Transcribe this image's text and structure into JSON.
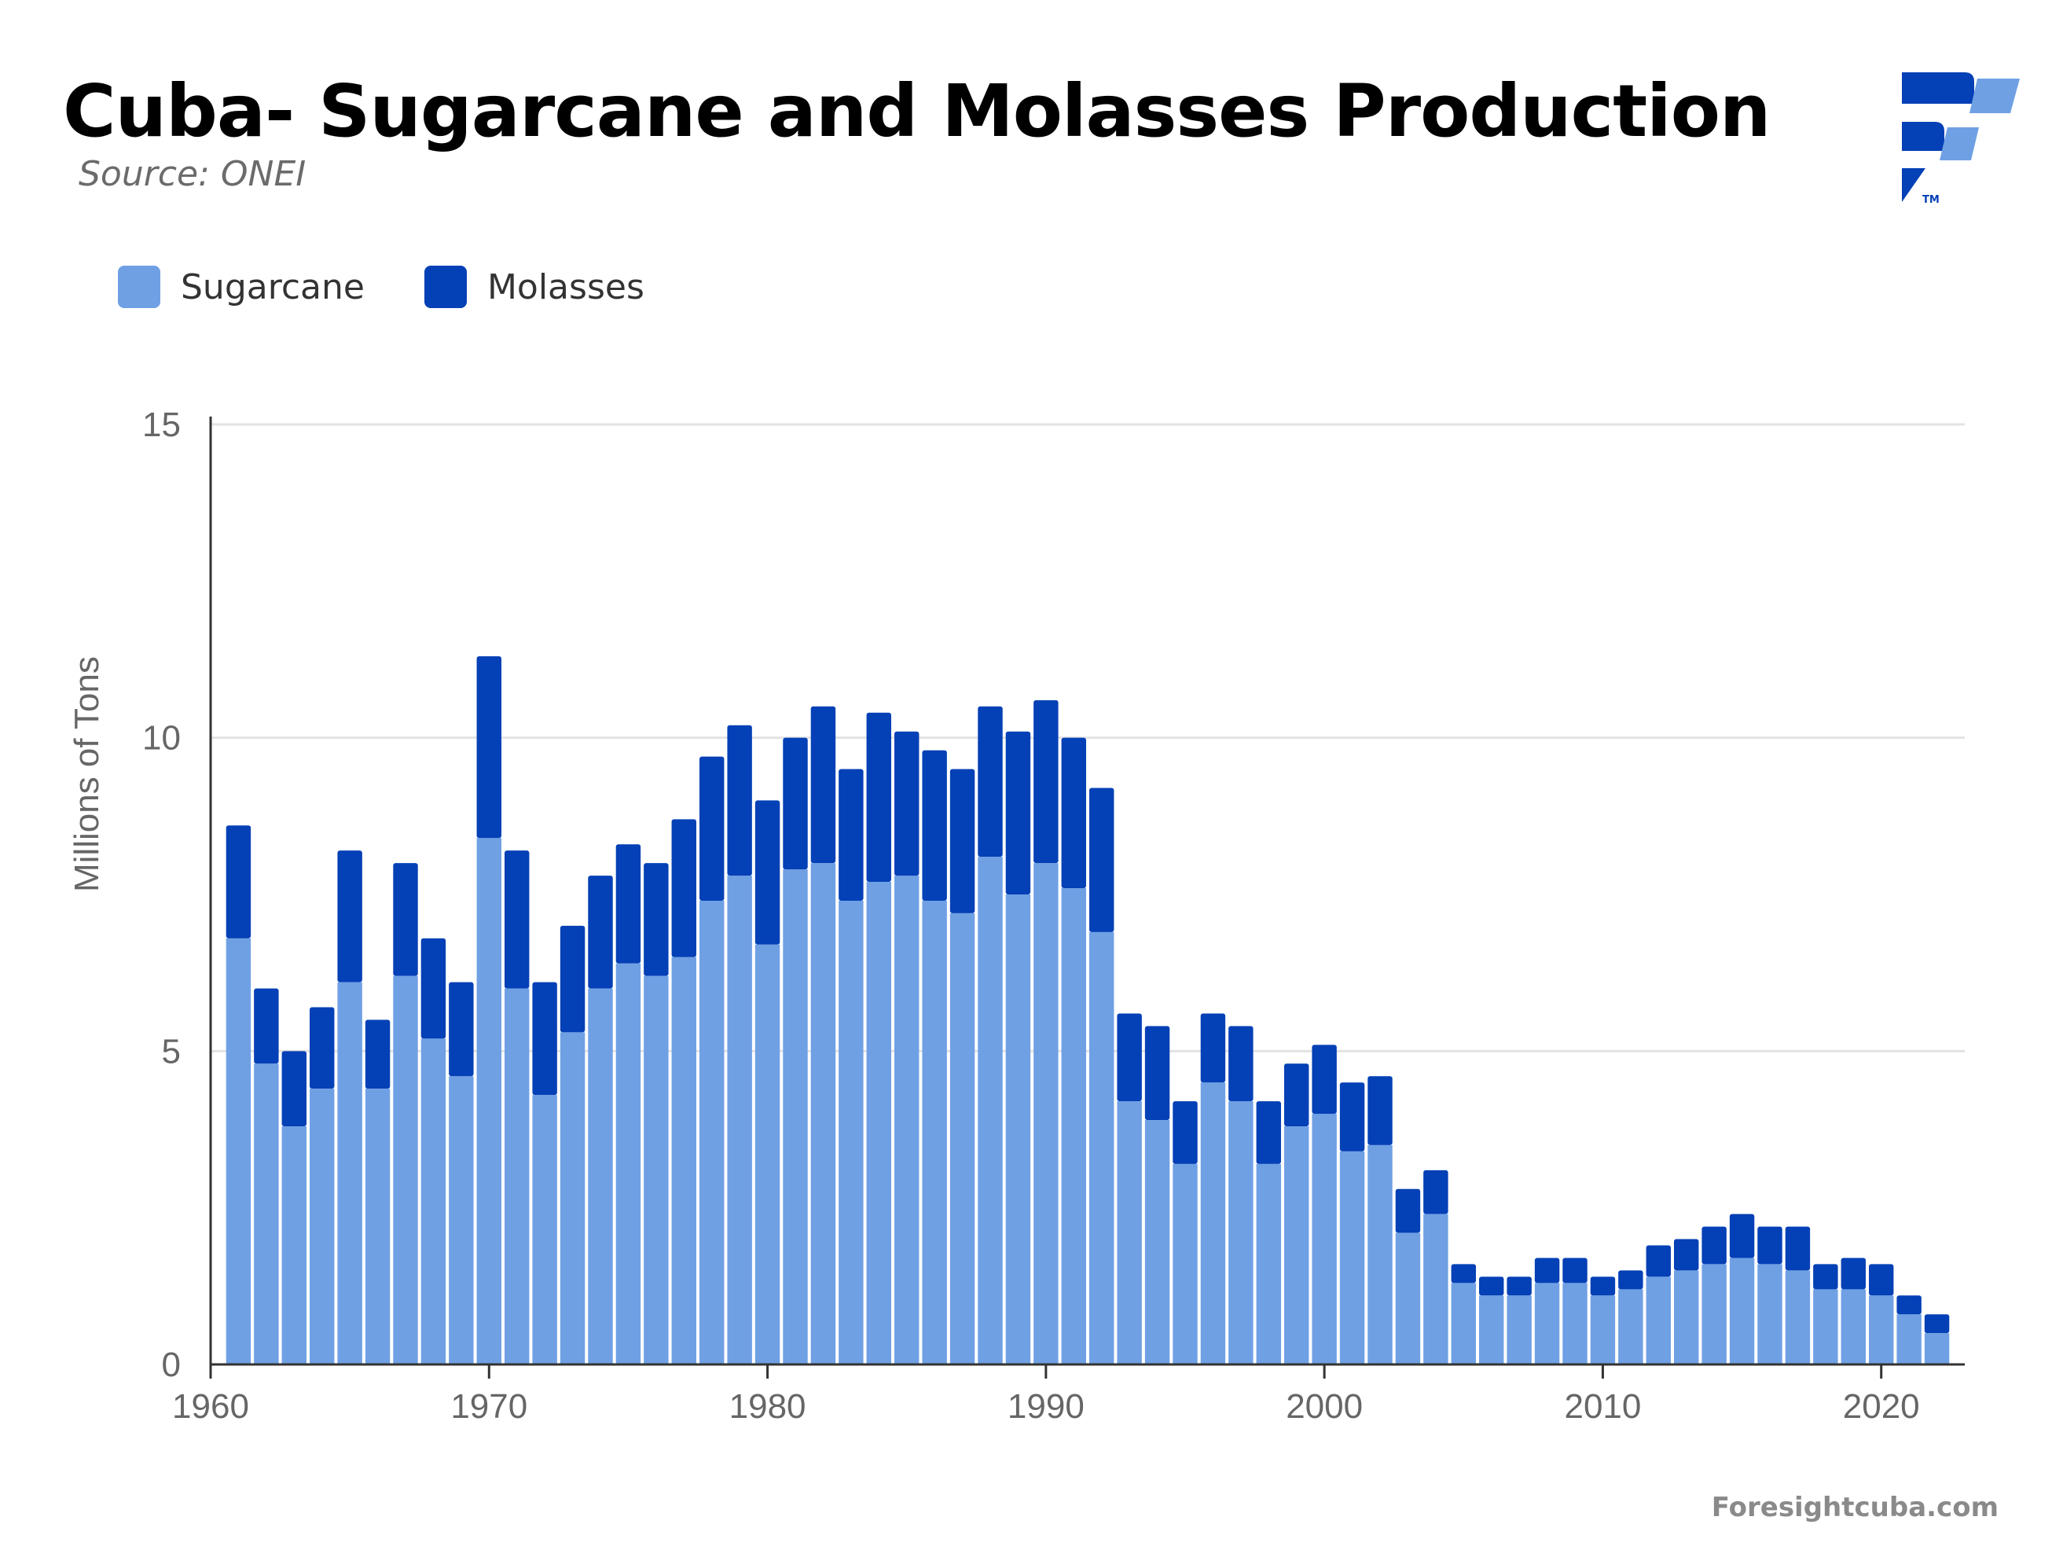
{
  "title": "Cuba- Sugarcane and Molasses Production",
  "subtitle": "Source: ONEI",
  "footer": "Foresightcuba.com",
  "logo": {
    "icon": "foresight-cuba-logo-icon",
    "tm": "TM"
  },
  "legend": [
    {
      "name": "Sugarcane",
      "color": "#6fa0e4"
    },
    {
      "name": "Molasses",
      "color": "#0440b6"
    }
  ],
  "colors": {
    "sugarcane": "#6fa0e4",
    "molasses": "#0440b6",
    "grid": "#e3e3e3",
    "axis": "#333333"
  },
  "chart_data": {
    "type": "bar",
    "stacked": true,
    "ylabel": "Millions of Tons",
    "xlabel": "",
    "ylim": [
      0,
      15
    ],
    "yticks": [
      0,
      5,
      10,
      15
    ],
    "xlim": [
      1960,
      2023
    ],
    "xticks": [
      1960,
      1970,
      1980,
      1990,
      2000,
      2010,
      2020
    ],
    "grid": true,
    "legend_position": "top-left",
    "x": [
      1961,
      1962,
      1963,
      1964,
      1965,
      1966,
      1967,
      1968,
      1969,
      1970,
      1971,
      1972,
      1973,
      1974,
      1975,
      1976,
      1977,
      1978,
      1979,
      1980,
      1981,
      1982,
      1983,
      1984,
      1985,
      1986,
      1987,
      1988,
      1989,
      1990,
      1991,
      1992,
      1993,
      1994,
      1995,
      1996,
      1997,
      1998,
      1999,
      2000,
      2001,
      2002,
      2003,
      2004,
      2005,
      2006,
      2007,
      2008,
      2009,
      2010,
      2011,
      2012,
      2013,
      2014,
      2015,
      2016,
      2017,
      2018,
      2019,
      2020,
      2021,
      2022
    ],
    "series": [
      {
        "name": "Sugarcane",
        "values": [
          6.8,
          4.8,
          3.8,
          4.4,
          6.1,
          4.4,
          6.2,
          5.2,
          4.6,
          8.4,
          6.0,
          4.3,
          5.3,
          6.0,
          6.4,
          6.2,
          6.5,
          7.4,
          7.8,
          6.7,
          7.9,
          8.0,
          7.4,
          7.7,
          7.8,
          7.4,
          7.2,
          8.1,
          7.5,
          8.0,
          7.6,
          6.9,
          4.2,
          3.9,
          3.2,
          4.5,
          4.2,
          3.2,
          3.8,
          4.0,
          3.4,
          3.5,
          2.1,
          2.4,
          1.3,
          1.1,
          1.1,
          1.3,
          1.3,
          1.1,
          1.2,
          1.4,
          1.5,
          1.6,
          1.7,
          1.6,
          1.5,
          1.2,
          1.2,
          1.1,
          0.8,
          0.5
        ]
      },
      {
        "name": "Molasses",
        "values": [
          1.8,
          1.2,
          1.2,
          1.3,
          2.1,
          1.1,
          1.8,
          1.6,
          1.5,
          2.9,
          2.2,
          1.8,
          1.7,
          1.8,
          1.9,
          1.8,
          2.2,
          2.3,
          2.4,
          2.3,
          2.1,
          2.5,
          2.1,
          2.7,
          2.3,
          2.4,
          2.3,
          2.4,
          2.6,
          2.6,
          2.4,
          2.3,
          1.4,
          1.5,
          1.0,
          1.1,
          1.2,
          1.0,
          1.0,
          1.1,
          1.1,
          1.1,
          0.7,
          0.7,
          0.3,
          0.3,
          0.3,
          0.4,
          0.4,
          0.3,
          0.3,
          0.5,
          0.5,
          0.6,
          0.7,
          0.6,
          0.7,
          0.4,
          0.5,
          0.5,
          0.3,
          0.3
        ]
      }
    ]
  }
}
